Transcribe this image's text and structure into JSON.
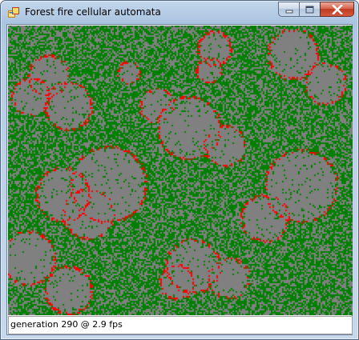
{
  "window": {
    "title": "Forest fire cellular automata",
    "buttons": {
      "minimize": "minimize-icon",
      "maximize": "maximize-icon",
      "close": "close-icon"
    }
  },
  "simulation": {
    "colors": {
      "empty": "#808080",
      "tree": "#008000",
      "fire": "#ff0000"
    },
    "cell_size_px": 2
  },
  "status": {
    "text": "generation 290 @ 2.9 fps"
  }
}
